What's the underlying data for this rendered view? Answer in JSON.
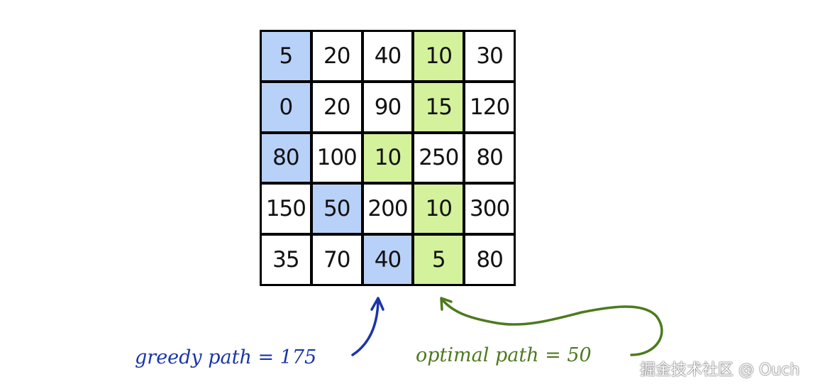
{
  "grid": {
    "rows": [
      [
        "5",
        "20",
        "40",
        "10",
        "30"
      ],
      [
        "0",
        "20",
        "90",
        "15",
        "120"
      ],
      [
        "80",
        "100",
        "10",
        "250",
        "80"
      ],
      [
        "150",
        "50",
        "200",
        "10",
        "300"
      ],
      [
        "35",
        "70",
        "40",
        "5",
        "80"
      ]
    ],
    "greedy_cells": [
      [
        0,
        0
      ],
      [
        1,
        0
      ],
      [
        2,
        0
      ],
      [
        3,
        1
      ],
      [
        4,
        2
      ]
    ],
    "optimal_cells": [
      [
        0,
        3
      ],
      [
        1,
        3
      ],
      [
        2,
        2
      ],
      [
        3,
        3
      ],
      [
        4,
        3
      ]
    ],
    "colors": {
      "greedy": "#b8d1f8",
      "optimal": "#d4f19c"
    }
  },
  "annotations": {
    "greedy": "greedy path = 175",
    "optimal": "optimal path = 50",
    "greedy_color": "#1a35a8",
    "optimal_color": "#4d7a1e"
  },
  "watermark": "掘金技术社区 @ Ouch"
}
